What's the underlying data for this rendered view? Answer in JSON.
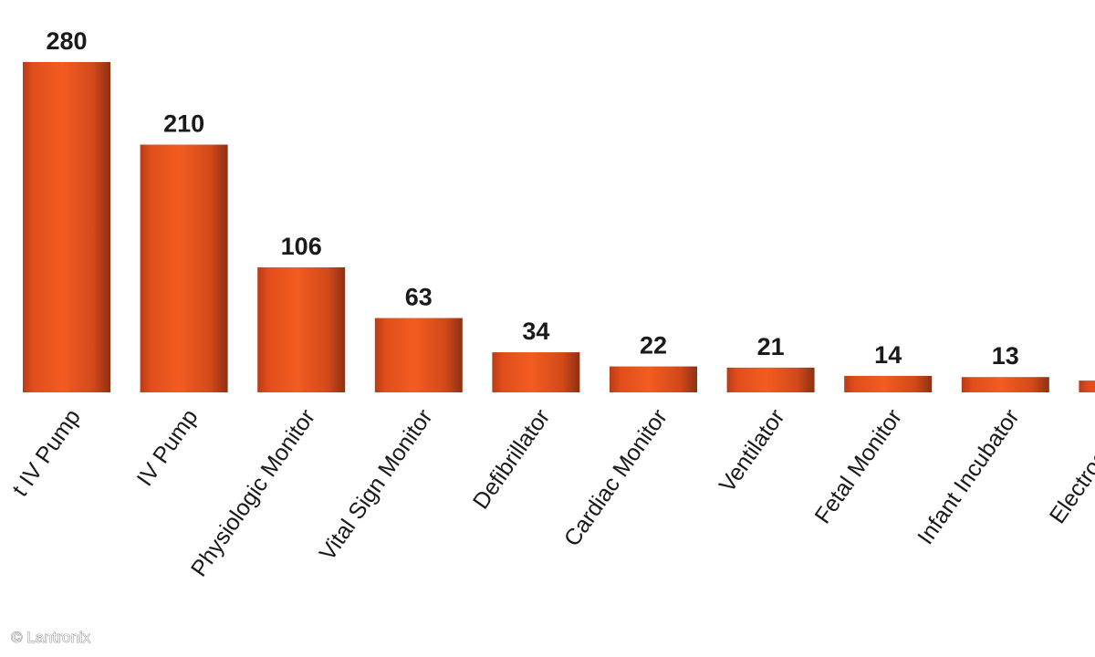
{
  "chart_data": {
    "type": "bar",
    "categories": [
      "t IV Pump",
      "IV Pump",
      "Physiologic Monitor",
      "Vital Sign Monitor",
      "Defibrillator",
      "Cardiac Monitor",
      "Ventilator",
      "Fetal Monitor",
      "Infant Incubator",
      "Electrocardio"
    ],
    "values": [
      280,
      210,
      106,
      63,
      34,
      22,
      21,
      14,
      13,
      10
    ],
    "value_labels": [
      "280",
      "210",
      "106",
      "63",
      "34",
      "22",
      "21",
      "14",
      "13",
      null
    ],
    "color": "#e8531c",
    "credit": "© Lantronix"
  }
}
